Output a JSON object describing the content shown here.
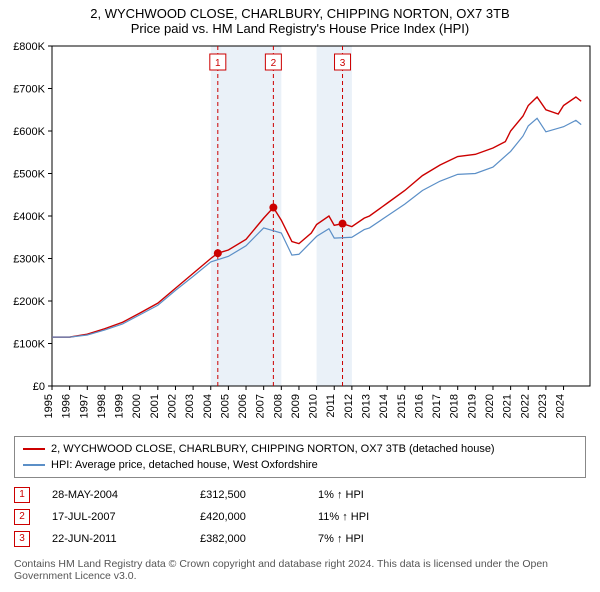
{
  "title_line1": "2, WYCHWOOD CLOSE, CHARLBURY, CHIPPING NORTON, OX7 3TB",
  "title_line2": "Price paid vs. HM Land Registry's House Price Index (HPI)",
  "chart": {
    "type": "line",
    "background_color": "#ffffff",
    "shade_color": "#eaf1f8",
    "grid_color": "#ffffff",
    "axis_color": "#000000",
    "x_years": [
      1995,
      1996,
      1997,
      1998,
      1999,
      2000,
      2001,
      2002,
      2003,
      2004,
      2005,
      2006,
      2007,
      2008,
      2009,
      2010,
      2011,
      2012,
      2013,
      2014,
      2015,
      2016,
      2017,
      2018,
      2019,
      2020,
      2021,
      2022,
      2023,
      2024
    ],
    "x_domain": [
      1995,
      2025.5
    ],
    "ylim": [
      0,
      800000
    ],
    "ytick_step": 100000,
    "ytick_labels": [
      "£0",
      "£100K",
      "£200K",
      "£300K",
      "£400K",
      "£500K",
      "£600K",
      "£700K",
      "£800K"
    ],
    "shaded_year_ranges": [
      [
        2004,
        2008
      ],
      [
        2010,
        2012
      ]
    ],
    "series": [
      {
        "name": "property",
        "legend": "2, WYCHWOOD CLOSE, CHARLBURY, CHIPPING NORTON, OX7 3TB (detached house)",
        "color": "#cc0000",
        "width": 1.4,
        "points": [
          [
            1995,
            115000
          ],
          [
            1996,
            115000
          ],
          [
            1997,
            122000
          ],
          [
            1998,
            135000
          ],
          [
            1999,
            150000
          ],
          [
            2000,
            172000
          ],
          [
            2001,
            195000
          ],
          [
            2002,
            230000
          ],
          [
            2003,
            265000
          ],
          [
            2004,
            300000
          ],
          [
            2004.4,
            312500
          ],
          [
            2005,
            320000
          ],
          [
            2006,
            345000
          ],
          [
            2007,
            395000
          ],
          [
            2007.55,
            420000
          ],
          [
            2008,
            390000
          ],
          [
            2008.6,
            340000
          ],
          [
            2009,
            335000
          ],
          [
            2009.7,
            360000
          ],
          [
            2010,
            380000
          ],
          [
            2010.7,
            400000
          ],
          [
            2011,
            378000
          ],
          [
            2011.47,
            382000
          ],
          [
            2012,
            375000
          ],
          [
            2012.7,
            395000
          ],
          [
            2013,
            400000
          ],
          [
            2014,
            430000
          ],
          [
            2015,
            460000
          ],
          [
            2016,
            495000
          ],
          [
            2017,
            520000
          ],
          [
            2018,
            540000
          ],
          [
            2019,
            545000
          ],
          [
            2020,
            560000
          ],
          [
            2020.7,
            575000
          ],
          [
            2021,
            600000
          ],
          [
            2021.7,
            635000
          ],
          [
            2022,
            660000
          ],
          [
            2022.5,
            680000
          ],
          [
            2023,
            650000
          ],
          [
            2023.7,
            640000
          ],
          [
            2024,
            660000
          ],
          [
            2024.7,
            680000
          ],
          [
            2025,
            670000
          ]
        ]
      },
      {
        "name": "hpi",
        "legend": "HPI: Average price, detached house, West Oxfordshire",
        "color": "#5b8fc7",
        "width": 1.2,
        "points": [
          [
            1995,
            115000
          ],
          [
            1996,
            115000
          ],
          [
            1997,
            120000
          ],
          [
            1998,
            132000
          ],
          [
            1999,
            146000
          ],
          [
            2000,
            168000
          ],
          [
            2001,
            190000
          ],
          [
            2002,
            225000
          ],
          [
            2003,
            258000
          ],
          [
            2004,
            292000
          ],
          [
            2005,
            305000
          ],
          [
            2006,
            330000
          ],
          [
            2007,
            372000
          ],
          [
            2008,
            360000
          ],
          [
            2008.6,
            308000
          ],
          [
            2009,
            310000
          ],
          [
            2010,
            352000
          ],
          [
            2010.7,
            370000
          ],
          [
            2011,
            348000
          ],
          [
            2012,
            350000
          ],
          [
            2012.7,
            368000
          ],
          [
            2013,
            372000
          ],
          [
            2014,
            400000
          ],
          [
            2015,
            428000
          ],
          [
            2016,
            460000
          ],
          [
            2017,
            482000
          ],
          [
            2018,
            498000
          ],
          [
            2019,
            500000
          ],
          [
            2020,
            515000
          ],
          [
            2021,
            552000
          ],
          [
            2021.7,
            588000
          ],
          [
            2022,
            612000
          ],
          [
            2022.5,
            630000
          ],
          [
            2023,
            598000
          ],
          [
            2024,
            610000
          ],
          [
            2024.7,
            625000
          ],
          [
            2025,
            615000
          ]
        ]
      }
    ],
    "event_lines": [
      {
        "n": "1",
        "x": 2004.4,
        "dash": "4,3",
        "color": "#cc0000"
      },
      {
        "n": "2",
        "x": 2007.55,
        "dash": "4,3",
        "color": "#cc0000"
      },
      {
        "n": "3",
        "x": 2011.47,
        "dash": "4,3",
        "color": "#cc0000"
      }
    ],
    "sale_markers": [
      {
        "x": 2004.4,
        "y": 312500,
        "color": "#cc0000"
      },
      {
        "x": 2007.55,
        "y": 420000,
        "color": "#cc0000"
      },
      {
        "x": 2011.47,
        "y": 382000,
        "color": "#cc0000"
      }
    ]
  },
  "legend": {
    "border_color": "#888888",
    "items": [
      {
        "color": "#cc0000",
        "label": "2, WYCHWOOD CLOSE, CHARLBURY, CHIPPING NORTON, OX7 3TB (detached house)"
      },
      {
        "color": "#5b8fc7",
        "label": "HPI: Average price, detached house, West Oxfordshire"
      }
    ]
  },
  "events": [
    {
      "n": "1",
      "date": "28-MAY-2004",
      "price": "£312,500",
      "delta": "1% ↑ HPI"
    },
    {
      "n": "2",
      "date": "17-JUL-2007",
      "price": "£420,000",
      "delta": "11% ↑ HPI"
    },
    {
      "n": "3",
      "date": "22-JUN-2011",
      "price": "£382,000",
      "delta": "7% ↑ HPI"
    }
  ],
  "footer": "Contains HM Land Registry data © Crown copyright and database right 2024. This data is licensed under the Open Government Licence v3.0."
}
